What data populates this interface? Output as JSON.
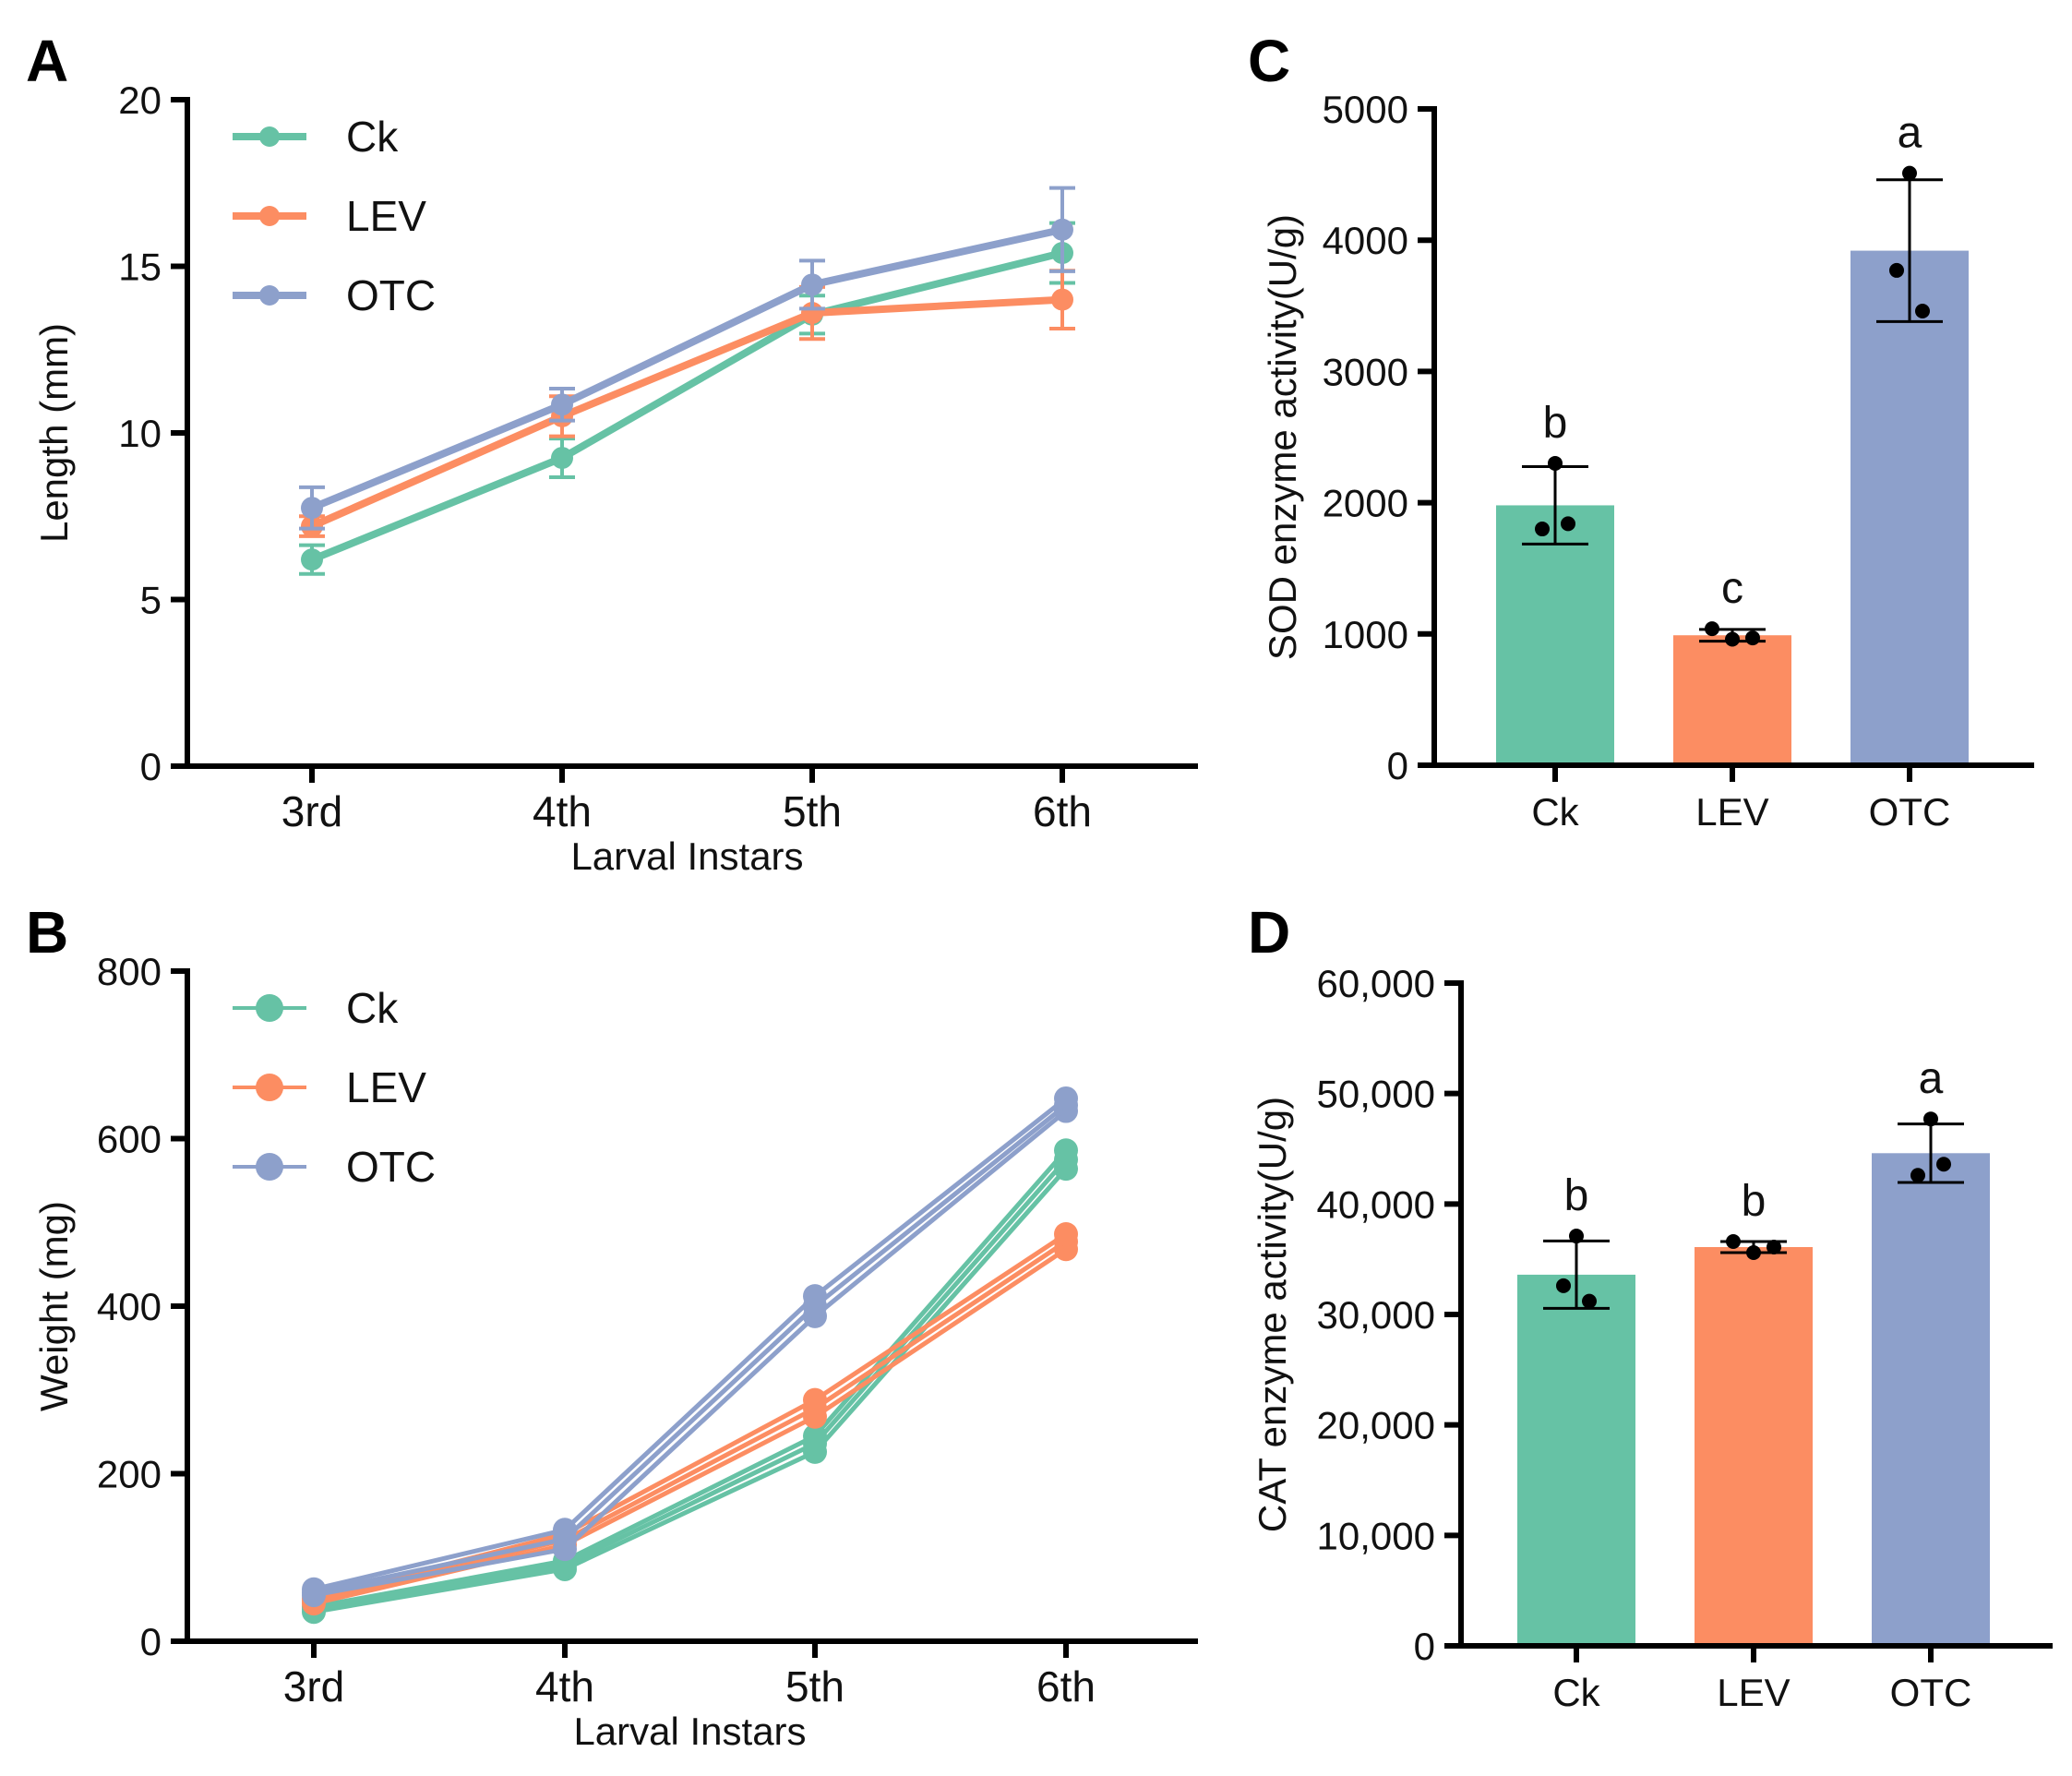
{
  "figure": {
    "panels": [
      "A",
      "B",
      "C",
      "D"
    ]
  },
  "colors": {
    "Ck": "#66c2a5",
    "LEV": "#fc8d62",
    "OTC": "#8da0cb",
    "axis": "#000000",
    "points": "#000000"
  },
  "chart_data": [
    {
      "panel": "A",
      "type": "line",
      "title": "",
      "xlabel": "Larval Instars",
      "ylabel": "Length (mm)",
      "categories": [
        "3rd",
        "4th",
        "5th",
        "6th"
      ],
      "ylim": [
        0,
        20
      ],
      "yticks": [
        0,
        5,
        10,
        15,
        20
      ],
      "grid": false,
      "legend_position": "top-left",
      "series": [
        {
          "name": "Ck",
          "values": [
            6.2,
            9.25,
            13.55,
            15.4
          ],
          "error": [
            0.43,
            0.58,
            0.57,
            0.9
          ]
        },
        {
          "name": "LEV",
          "values": [
            7.2,
            10.5,
            13.6,
            14.0
          ],
          "error": [
            0.3,
            0.6,
            0.78,
            0.87
          ]
        },
        {
          "name": "OTC",
          "values": [
            7.75,
            10.85,
            14.45,
            16.1
          ],
          "error": [
            0.62,
            0.48,
            0.72,
            1.25
          ]
        }
      ]
    },
    {
      "panel": "B",
      "type": "line",
      "title": "",
      "xlabel": "Larval Instars",
      "ylabel": "Weight (mg)",
      "categories": [
        "3rd",
        "4th",
        "5th",
        "6th"
      ],
      "ylim": [
        0,
        800
      ],
      "yticks": [
        0,
        200,
        400,
        600,
        800
      ],
      "grid": false,
      "legend_position": "top-left",
      "series": [
        {
          "name": "Ck",
          "replicates": [
            [
              35,
              86,
              226,
              564
            ],
            [
              38,
              91,
              236,
              575
            ],
            [
              41,
              96,
              245,
              586
            ]
          ]
        },
        {
          "name": "LEV",
          "replicates": [
            [
              45,
              115,
              268,
              468
            ],
            [
              48,
              121,
              278,
              477
            ],
            [
              51,
              128,
              288,
              486
            ]
          ]
        },
        {
          "name": "OTC",
          "replicates": [
            [
              55,
              110,
              388,
              633
            ],
            [
              58,
              122,
              400,
              640
            ],
            [
              62,
              133,
              412,
              648
            ]
          ]
        }
      ]
    },
    {
      "panel": "C",
      "type": "bar",
      "title": "",
      "xlabel": "",
      "ylabel": "SOD enzyme activity(U/g)",
      "categories": [
        "Ck",
        "LEV",
        "OTC"
      ],
      "values": [
        1980,
        990,
        3920
      ],
      "error": [
        295,
        45,
        540
      ],
      "points": [
        [
          2300,
          1800,
          1840
        ],
        [
          960,
          1040,
          970
        ],
        [
          4510,
          3770,
          3460
        ]
      ],
      "significance": [
        "b",
        "c",
        "a"
      ],
      "ylim": [
        0,
        5000
      ],
      "yticks": [
        0,
        1000,
        2000,
        3000,
        4000,
        5000
      ],
      "ytick_labels": [
        "0",
        "1000",
        "2000",
        "3000",
        "4000",
        "5000"
      ],
      "grid": false
    },
    {
      "panel": "D",
      "type": "bar",
      "title": "",
      "xlabel": "",
      "ylabel": "CAT enzyme activity(U/g)",
      "categories": [
        "Ck",
        "LEV",
        "OTC"
      ],
      "values": [
        33600,
        36100,
        44600
      ],
      "error": [
        3050,
        500,
        2650
      ],
      "points": [
        [
          37100,
          32600,
          31200
        ],
        [
          35600,
          36600,
          36100
        ],
        [
          47700,
          42600,
          43600
        ]
      ],
      "significance": [
        "b",
        "b",
        "a"
      ],
      "ylim": [
        0,
        60000
      ],
      "yticks": [
        0,
        10000,
        20000,
        30000,
        40000,
        50000,
        60000
      ],
      "ytick_labels": [
        "0",
        "10,000",
        "20,000",
        "30,000",
        "40,000",
        "50,000",
        "60,000"
      ],
      "grid": false
    }
  ]
}
